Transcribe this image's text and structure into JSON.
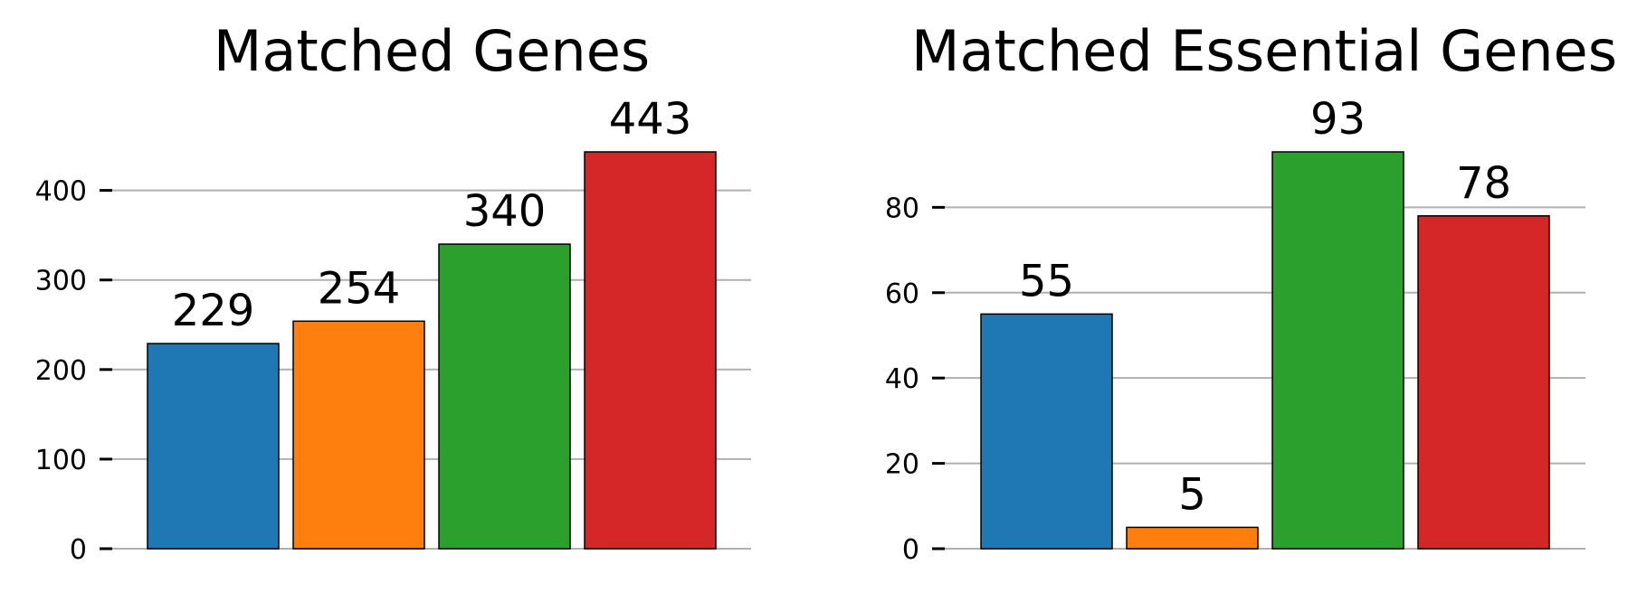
{
  "chart_data": [
    {
      "type": "bar",
      "title": "Matched Genes",
      "xlabel": "",
      "ylabel": "",
      "values": [
        229,
        254,
        340,
        443
      ],
      "data_labels": [
        "229",
        "254",
        "340",
        "443"
      ],
      "colors": [
        "#1f77b4",
        "#ff7f0e",
        "#2ca02c",
        "#d62728"
      ],
      "ylim": [
        0,
        443
      ],
      "yticks": [
        0,
        100,
        200,
        300,
        400
      ],
      "ytick_labels": [
        "0",
        "100",
        "200",
        "300",
        "400"
      ],
      "grid": true,
      "legend": "none"
    },
    {
      "type": "bar",
      "title": "Matched Essential Genes",
      "xlabel": "",
      "ylabel": "",
      "values": [
        55,
        5,
        93,
        78
      ],
      "data_labels": [
        "55",
        "5",
        "93",
        "78"
      ],
      "colors": [
        "#1f77b4",
        "#ff7f0e",
        "#2ca02c",
        "#d62728"
      ],
      "ylim": [
        0,
        93
      ],
      "yticks": [
        0,
        20,
        40,
        60,
        80
      ],
      "ytick_labels": [
        "0",
        "20",
        "40",
        "60",
        "80"
      ],
      "grid": true,
      "legend": "none"
    }
  ]
}
